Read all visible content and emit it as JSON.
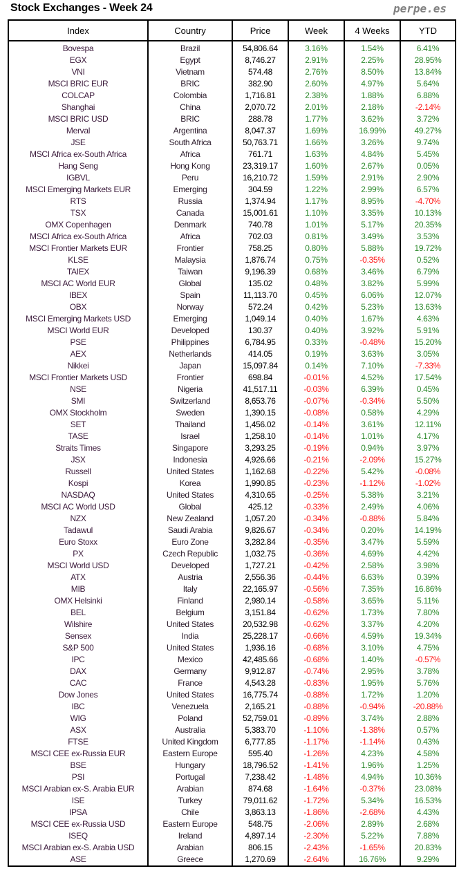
{
  "title": "Stock Exchanges - Week 24",
  "brand": "perpe.es",
  "colors": {
    "positive": "#2e8b2e",
    "negative": "#ff1a1a"
  },
  "columns": [
    "Index",
    "Country",
    "Price",
    "Week",
    "4 Weeks",
    "YTD"
  ],
  "rows": [
    [
      "Bovespa",
      "Brazil",
      "54,806.64",
      "3.16%",
      "1.54%",
      "6.41%"
    ],
    [
      "EGX",
      "Egypt",
      "8,746.27",
      "2.91%",
      "2.25%",
      "28.95%"
    ],
    [
      "VNI",
      "Vietnam",
      "574.48",
      "2.76%",
      "8.50%",
      "13.84%"
    ],
    [
      "MSCI BRIC EUR",
      "BRIC",
      "382.90",
      "2.60%",
      "4.97%",
      "5.64%"
    ],
    [
      "COLCAP",
      "Colombia",
      "1,716.81",
      "2.38%",
      "1.88%",
      "6.88%"
    ],
    [
      "Shanghai",
      "China",
      "2,070.72",
      "2.01%",
      "2.18%",
      "-2.14%"
    ],
    [
      "MSCI BRIC USD",
      "BRIC",
      "288.78",
      "1.77%",
      "3.62%",
      "3.72%"
    ],
    [
      "Merval",
      "Argentina",
      "8,047.37",
      "1.69%",
      "16.99%",
      "49.27%"
    ],
    [
      "JSE",
      "South Africa",
      "50,763.71",
      "1.66%",
      "3.26%",
      "9.74%"
    ],
    [
      "MSCI Africa ex-South Africa",
      "Africa",
      "761.71",
      "1.63%",
      "4.84%",
      "5.45%"
    ],
    [
      "Hang Seng",
      "Hong Kong",
      "23,319.17",
      "1.60%",
      "2.67%",
      "0.05%"
    ],
    [
      "IGBVL",
      "Peru",
      "16,210.72",
      "1.59%",
      "2.91%",
      "2.90%"
    ],
    [
      "MSCI Emerging Markets EUR",
      "Emerging",
      "304.59",
      "1.22%",
      "2.99%",
      "6.57%"
    ],
    [
      "RTS",
      "Russia",
      "1,374.94",
      "1.17%",
      "8.95%",
      "-4.70%"
    ],
    [
      "TSX",
      "Canada",
      "15,001.61",
      "1.10%",
      "3.35%",
      "10.13%"
    ],
    [
      "OMX Copenhagen",
      "Denmark",
      "740.78",
      "1.01%",
      "5.17%",
      "20.35%"
    ],
    [
      "MSCI Africa ex-South Africa",
      "Africa",
      "702.03",
      "0.81%",
      "3.49%",
      "3.53%"
    ],
    [
      "MSCI Frontier Markets EUR",
      "Frontier",
      "758.25",
      "0.80%",
      "5.88%",
      "19.72%"
    ],
    [
      "KLSE",
      "Malaysia",
      "1,876.74",
      "0.75%",
      "-0.35%",
      "0.52%"
    ],
    [
      "TAIEX",
      "Taiwan",
      "9,196.39",
      "0.68%",
      "3.46%",
      "6.79%"
    ],
    [
      "MSCI AC World EUR",
      "Global",
      "135.02",
      "0.48%",
      "3.82%",
      "5.99%"
    ],
    [
      "IBEX",
      "Spain",
      "11,113.70",
      "0.45%",
      "6.06%",
      "12.07%"
    ],
    [
      "OBX",
      "Norway",
      "572.24",
      "0.42%",
      "5.23%",
      "13.63%"
    ],
    [
      "MSCI Emerging Markets USD",
      "Emerging",
      "1,049.14",
      "0.40%",
      "1.67%",
      "4.63%"
    ],
    [
      "MSCI World EUR",
      "Developed",
      "130.37",
      "0.40%",
      "3.92%",
      "5.91%"
    ],
    [
      "PSE",
      "Philippines",
      "6,784.95",
      "0.33%",
      "-0.48%",
      "15.20%"
    ],
    [
      "AEX",
      "Netherlands",
      "414.05",
      "0.19%",
      "3.63%",
      "3.05%"
    ],
    [
      "Nikkei",
      "Japan",
      "15,097.84",
      "0.14%",
      "7.10%",
      "-7.33%"
    ],
    [
      "MSCI Frontier Markets USD",
      "Frontier",
      "698.84",
      "-0.01%",
      "4.52%",
      "17.54%"
    ],
    [
      "NSE",
      "Nigeria",
      "41,517.11",
      "-0.03%",
      "6.39%",
      "0.45%"
    ],
    [
      "SMI",
      "Switzerland",
      "8,653.76",
      "-0.07%",
      "-0.34%",
      "5.50%"
    ],
    [
      "OMX Stockholm",
      "Sweden",
      "1,390.15",
      "-0.08%",
      "0.58%",
      "4.29%"
    ],
    [
      "SET",
      "Thailand",
      "1,456.02",
      "-0.14%",
      "3.61%",
      "12.11%"
    ],
    [
      "TASE",
      "Israel",
      "1,258.10",
      "-0.14%",
      "1.01%",
      "4.17%"
    ],
    [
      "Straits Times",
      "Singapore",
      "3,293.25",
      "-0.19%",
      "0.94%",
      "3.97%"
    ],
    [
      "JSX",
      "Indonesia",
      "4,926.66",
      "-0.21%",
      "-2.09%",
      "15.27%"
    ],
    [
      "Russell",
      "United States",
      "1,162.68",
      "-0.22%",
      "5.42%",
      "-0.08%"
    ],
    [
      "Kospi",
      "Korea",
      "1,990.85",
      "-0.23%",
      "-1.12%",
      "-1.02%"
    ],
    [
      "NASDAQ",
      "United States",
      "4,310.65",
      "-0.25%",
      "5.38%",
      "3.21%"
    ],
    [
      "MSCI AC World USD",
      "Global",
      "425.12",
      "-0.33%",
      "2.49%",
      "4.06%"
    ],
    [
      "NZX",
      "New Zealand",
      "1,057.20",
      "-0.34%",
      "-0.88%",
      "5.84%"
    ],
    [
      "Tadawul",
      "Saudi Arabia",
      "9,826.67",
      "-0.34%",
      "0.20%",
      "14.19%"
    ],
    [
      "Euro Stoxx",
      "Euro Zone",
      "3,282.84",
      "-0.35%",
      "3.47%",
      "5.59%"
    ],
    [
      "PX",
      "Czech Republic",
      "1,032.75",
      "-0.36%",
      "4.69%",
      "4.42%"
    ],
    [
      "MSCI World USD",
      "Developed",
      "1,727.21",
      "-0.42%",
      "2.58%",
      "3.98%"
    ],
    [
      "ATX",
      "Austria",
      "2,556.36",
      "-0.44%",
      "6.63%",
      "0.39%"
    ],
    [
      "MIB",
      "Italy",
      "22,165.97",
      "-0.56%",
      "7.35%",
      "16.86%"
    ],
    [
      "OMX Helsinki",
      "Finland",
      "2,980.14",
      "-0.58%",
      "3.65%",
      "5.11%"
    ],
    [
      "BEL",
      "Belgium",
      "3,151.84",
      "-0.62%",
      "1.73%",
      "7.80%"
    ],
    [
      "Wilshire",
      "United States",
      "20,532.98",
      "-0.62%",
      "3.37%",
      "4.20%"
    ],
    [
      "Sensex",
      "India",
      "25,228.17",
      "-0.66%",
      "4.59%",
      "19.34%"
    ],
    [
      "S&P 500",
      "United States",
      "1,936.16",
      "-0.68%",
      "3.10%",
      "4.75%"
    ],
    [
      "IPC",
      "Mexico",
      "42,485.66",
      "-0.68%",
      "1.40%",
      "-0.57%"
    ],
    [
      "DAX",
      "Germany",
      "9,912.87",
      "-0.74%",
      "2.95%",
      "3.78%"
    ],
    [
      "CAC",
      "France",
      "4,543.28",
      "-0.83%",
      "1.95%",
      "5.76%"
    ],
    [
      "Dow Jones",
      "United States",
      "16,775.74",
      "-0.88%",
      "1.72%",
      "1.20%"
    ],
    [
      "IBC",
      "Venezuela",
      "2,165.21",
      "-0.88%",
      "-0.94%",
      "-20.88%"
    ],
    [
      "WIG",
      "Poland",
      "52,759.01",
      "-0.89%",
      "3.74%",
      "2.88%"
    ],
    [
      "ASX",
      "Australia",
      "5,383.70",
      "-1.10%",
      "-1.38%",
      "0.57%"
    ],
    [
      "FTSE",
      "United Kingdom",
      "6,777.85",
      "-1.17%",
      "-1.14%",
      "0.43%"
    ],
    [
      "MSCI CEE ex-Russia EUR",
      "Eastern Europe",
      "595.40",
      "-1.26%",
      "4.23%",
      "4.58%"
    ],
    [
      "BSE",
      "Hungary",
      "18,796.52",
      "-1.41%",
      "1.96%",
      "1.25%"
    ],
    [
      "PSI",
      "Portugal",
      "7,238.42",
      "-1.48%",
      "4.94%",
      "10.36%"
    ],
    [
      "MSCI Arabian ex-S. Arabia EUR",
      "Arabian",
      "874.68",
      "-1.64%",
      "-0.37%",
      "23.08%"
    ],
    [
      "ISE",
      "Turkey",
      "79,011.62",
      "-1.72%",
      "5.34%",
      "16.53%"
    ],
    [
      "IPSA",
      "Chile",
      "3,863.13",
      "-1.86%",
      "-2.68%",
      "4.43%"
    ],
    [
      "MSCI CEE ex-Russia USD",
      "Eastern Europe",
      "548.75",
      "-2.06%",
      "2.89%",
      "2.68%"
    ],
    [
      "ISEQ",
      "Ireland",
      "4,897.14",
      "-2.30%",
      "5.22%",
      "7.88%"
    ],
    [
      "MSCI Arabian ex-S. Arabia USD",
      "Arabian",
      "806.15",
      "-2.43%",
      "-1.65%",
      "20.83%"
    ],
    [
      "ASE",
      "Greece",
      "1,270.69",
      "-2.64%",
      "16.76%",
      "9.29%"
    ]
  ]
}
